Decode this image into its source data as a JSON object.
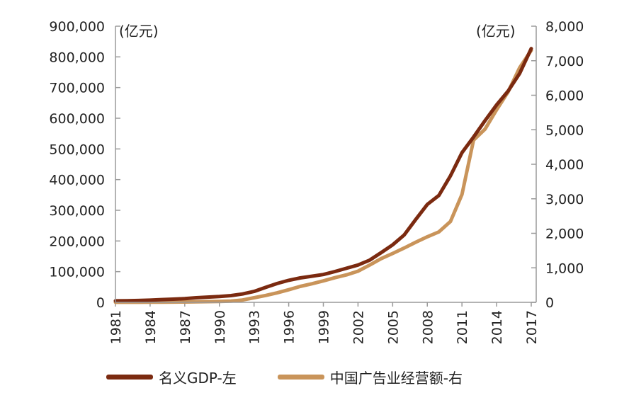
{
  "chart_data": {
    "type": "line",
    "title": "",
    "x": [
      "1981",
      "1982",
      "1983",
      "1984",
      "1985",
      "1986",
      "1987",
      "1988",
      "1989",
      "1990",
      "1991",
      "1992",
      "1993",
      "1994",
      "1995",
      "1996",
      "1997",
      "1998",
      "1999",
      "2000",
      "2001",
      "2002",
      "2003",
      "2004",
      "2005",
      "2006",
      "2007",
      "2008",
      "2009",
      "2010",
      "2011",
      "2012",
      "2013",
      "2014",
      "2015",
      "2016",
      "2017"
    ],
    "x_tick_labels": [
      "1981",
      "1984",
      "1987",
      "1990",
      "1993",
      "1996",
      "1999",
      "2002",
      "2005",
      "2008",
      "2011",
      "2014",
      "2017"
    ],
    "y_left": {
      "unit_label": "(亿元)",
      "range": [
        0,
        900000
      ],
      "tick_labels": [
        "0",
        "100,000",
        "200,000",
        "300,000",
        "400,000",
        "500,000",
        "600,000",
        "700,000",
        "800,000",
        "900,000"
      ]
    },
    "y_right": {
      "unit_label": "(亿元)",
      "range": [
        0,
        8000
      ],
      "tick_labels": [
        "0",
        "1,000",
        "2,000",
        "3,000",
        "4,000",
        "5,000",
        "6,000",
        "7,000",
        "8,000"
      ]
    },
    "series": [
      {
        "name": "名义GDP-左",
        "axis": "left",
        "color": "#7b2a10",
        "values": [
          4900,
          5300,
          6000,
          7200,
          9000,
          10300,
          12100,
          15100,
          17100,
          18900,
          22000,
          27200,
          35600,
          48600,
          61300,
          71800,
          79700,
          85200,
          90600,
          100300,
          111000,
          121700,
          137400,
          161800,
          187300,
          219400,
          270100,
          319200,
          348500,
          412100,
          487900,
          538600,
          592300,
          643600,
          688900,
          746400,
          827100
        ]
      },
      {
        "name": "中国广告业经营额-右",
        "axis": "right",
        "color": "#c9945a",
        "values": [
          1.2,
          1.5,
          2.3,
          3.6,
          6.1,
          8.5,
          11.1,
          14.9,
          20,
          25,
          35,
          68,
          134,
          200,
          274,
          366,
          462,
          538,
          622,
          713,
          795,
          903,
          1078,
          1265,
          1416,
          1573,
          1741,
          1899,
          2041,
          2341,
          3126,
          4698,
          5020,
          5580,
          6100,
          6800,
          7300
        ]
      }
    ],
    "grid": false,
    "legend_position": "bottom"
  }
}
